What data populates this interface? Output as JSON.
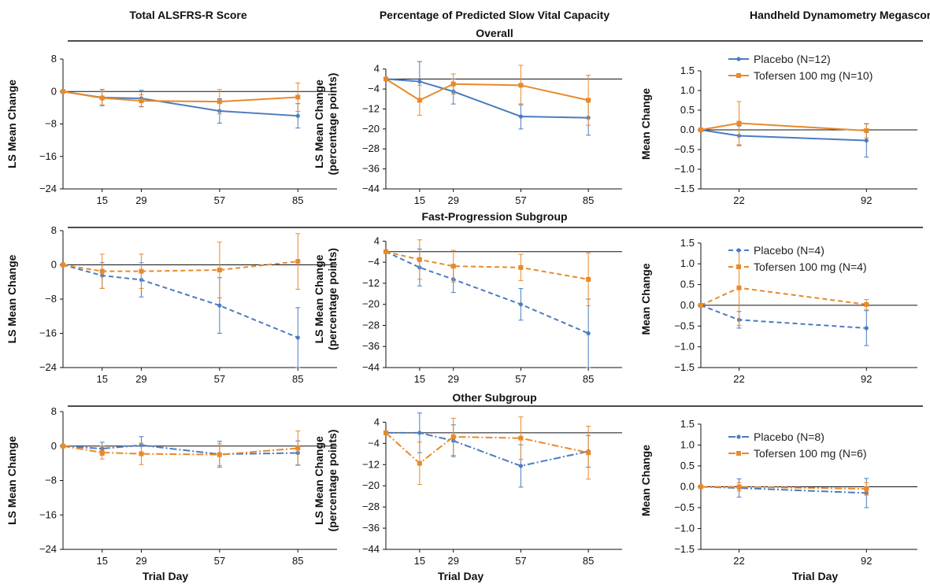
{
  "column_titles": [
    "Total ALSFRS-R Score",
    "Percentage of Predicted Slow Vital Capacity",
    "Handheld Dynamometry Megascore"
  ],
  "row_titles": [
    "Overall",
    "Fast-Progression Subgroup",
    "Other Subgroup"
  ],
  "x_axis_title": "Trial Day",
  "colors": {
    "placebo": "#4a7cc0",
    "tofersen": "#e8892b",
    "axis": "#111111"
  },
  "chart_data": [
    {
      "type": "line",
      "row": 0,
      "col": 0,
      "dash": "solid",
      "ylabel": [
        "LS Mean Change"
      ],
      "x": [
        1,
        15,
        29,
        57,
        85
      ],
      "xticks": [
        15,
        29,
        57,
        85
      ],
      "xlim": [
        1,
        99
      ],
      "ylim": [
        -24,
        8
      ],
      "yticks": [
        8,
        0,
        -8,
        -16,
        -24
      ],
      "ytick_labels": [
        "8",
        "0",
        "−8",
        "−16",
        "−24"
      ],
      "series": [
        {
          "key": "placebo",
          "values": [
            0,
            -1.5,
            -1.7,
            -4.8,
            -6.0
          ],
          "err": [
            0,
            2.0,
            2.0,
            3.0,
            3.0
          ]
        },
        {
          "key": "tofersen",
          "values": [
            0,
            -1.6,
            -2.3,
            -2.5,
            -1.4
          ],
          "err": [
            0,
            1.7,
            1.5,
            3.0,
            3.5
          ]
        }
      ]
    },
    {
      "type": "line",
      "row": 0,
      "col": 1,
      "dash": "solid",
      "ylabel": [
        "LS Mean Change",
        "(percentage points)"
      ],
      "x": [
        1,
        15,
        29,
        57,
        85
      ],
      "xticks": [
        15,
        29,
        57,
        85
      ],
      "xlim": [
        1,
        99
      ],
      "ylim": [
        -44,
        8
      ],
      "yticks": [
        4,
        -4,
        -12,
        -20,
        -28,
        -36,
        -44
      ],
      "ytick_labels": [
        "4",
        "−4",
        "−12",
        "−20",
        "−28",
        "−36",
        "−44"
      ],
      "series": [
        {
          "key": "placebo",
          "values": [
            0,
            -1.0,
            -5.0,
            -15.0,
            -15.5
          ],
          "err": [
            0,
            8.0,
            5.0,
            5.0,
            7.0
          ]
        },
        {
          "key": "tofersen",
          "values": [
            0,
            -8.5,
            -2.0,
            -2.5,
            -8.5
          ],
          "err": [
            0,
            6.0,
            4.0,
            8.0,
            10.0
          ]
        }
      ]
    },
    {
      "type": "line",
      "row": 0,
      "col": 2,
      "dash": "solid",
      "ylabel": [
        "Mean Change"
      ],
      "x": [
        1,
        22,
        92
      ],
      "xticks": [
        22,
        92
      ],
      "xlim": [
        1,
        120
      ],
      "ylim": [
        -1.5,
        1.8
      ],
      "yticks": [
        1.5,
        1.0,
        0.5,
        0.0,
        -0.5,
        -1.0,
        -1.5
      ],
      "ytick_labels": [
        "1.5",
        "1.0",
        "0.5",
        "0.0",
        "−0.5",
        "−1.0",
        "−1.5"
      ],
      "series": [
        {
          "key": "placebo",
          "label": "Placebo (N=12)",
          "values": [
            0,
            -0.15,
            -0.27
          ],
          "err": [
            0,
            0.25,
            0.42
          ]
        },
        {
          "key": "tofersen",
          "label": "Tofersen 100 mg (N=10)",
          "values": [
            0,
            0.17,
            -0.02
          ],
          "err": [
            0,
            0.55,
            0.18
          ]
        }
      ]
    },
    {
      "type": "line",
      "row": 1,
      "col": 0,
      "dash": "dashed",
      "ylabel": [
        "LS Mean Change"
      ],
      "x": [
        1,
        15,
        29,
        57,
        85
      ],
      "xticks": [
        15,
        29,
        57,
        85
      ],
      "xlim": [
        1,
        99
      ],
      "ylim": [
        -24,
        8
      ],
      "yticks": [
        8,
        0,
        -8,
        -16,
        -24
      ],
      "ytick_labels": [
        "8",
        "0",
        "−8",
        "−16",
        "−24"
      ],
      "series": [
        {
          "key": "placebo",
          "values": [
            0,
            -2.5,
            -3.5,
            -9.5,
            -17.0
          ],
          "err": [
            0,
            3.0,
            4.0,
            6.5,
            7.0
          ]
        },
        {
          "key": "tofersen",
          "values": [
            0,
            -1.5,
            -1.5,
            -1.2,
            0.8
          ],
          "err": [
            0,
            4.0,
            4.0,
            6.5,
            6.5
          ]
        }
      ]
    },
    {
      "type": "line",
      "row": 1,
      "col": 1,
      "dash": "dashed",
      "ylabel": [
        "LS Mean Change",
        "(percentage points)"
      ],
      "x": [
        1,
        15,
        29,
        57,
        85
      ],
      "xticks": [
        15,
        29,
        57,
        85
      ],
      "xlim": [
        1,
        99
      ],
      "ylim": [
        -44,
        8
      ],
      "yticks": [
        4,
        -4,
        -12,
        -20,
        -28,
        -36,
        -44
      ],
      "ytick_labels": [
        "4",
        "−4",
        "−12",
        "−20",
        "−28",
        "−36",
        "−44"
      ],
      "series": [
        {
          "key": "placebo",
          "values": [
            0,
            -6.0,
            -10.5,
            -20.0,
            -31.0
          ],
          "err": [
            0,
            7.0,
            5.0,
            6.0,
            13.0
          ]
        },
        {
          "key": "tofersen",
          "values": [
            0,
            -3.0,
            -5.5,
            -6.0,
            -10.5
          ],
          "err": [
            0,
            7.5,
            6.0,
            5.0,
            10.0
          ]
        }
      ]
    },
    {
      "type": "line",
      "row": 1,
      "col": 2,
      "dash": "dashed",
      "ylabel": [
        "Mean Change"
      ],
      "x": [
        1,
        22,
        92
      ],
      "xticks": [
        22,
        92
      ],
      "xlim": [
        1,
        120
      ],
      "ylim": [
        -1.5,
        1.8
      ],
      "yticks": [
        1.5,
        1.0,
        0.5,
        0.0,
        -0.5,
        -1.0,
        -1.5
      ],
      "ytick_labels": [
        "1.5",
        "1.0",
        "0.5",
        "0.0",
        "−0.5",
        "−1.0",
        "−1.5"
      ],
      "series": [
        {
          "key": "placebo",
          "label": "Placebo (N=4)",
          "values": [
            0,
            -0.35,
            -0.55
          ],
          "err": [
            0,
            0.2,
            0.42
          ]
        },
        {
          "key": "tofersen",
          "label": "Tofersen 100 mg (N=4)",
          "values": [
            0,
            0.42,
            0.02
          ],
          "err": [
            0,
            0.9,
            0.12
          ]
        }
      ]
    },
    {
      "type": "line",
      "row": 2,
      "col": 0,
      "dash": "dashdot",
      "ylabel": [
        "LS Mean Change"
      ],
      "x": [
        1,
        15,
        29,
        57,
        85
      ],
      "xticks": [
        15,
        29,
        57,
        85
      ],
      "xlim": [
        1,
        99
      ],
      "ylim": [
        -24,
        8
      ],
      "yticks": [
        8,
        0,
        -8,
        -16,
        -24
      ],
      "ytick_labels": [
        "8",
        "0",
        "−8",
        "−16",
        "−24"
      ],
      "series": [
        {
          "key": "placebo",
          "values": [
            0,
            -0.6,
            0.2,
            -1.9,
            -1.6
          ],
          "err": [
            0,
            1.5,
            2.0,
            3.0,
            2.8
          ]
        },
        {
          "key": "tofersen",
          "values": [
            0,
            -1.5,
            -1.8,
            -2.0,
            -0.5
          ],
          "err": [
            0,
            1.5,
            2.5,
            2.5,
            4.0
          ]
        }
      ]
    },
    {
      "type": "line",
      "row": 2,
      "col": 1,
      "dash": "dashdot",
      "ylabel": [
        "LS Mean Change",
        "(percentage points)"
      ],
      "x": [
        1,
        15,
        29,
        57,
        85
      ],
      "xticks": [
        15,
        29,
        57,
        85
      ],
      "xlim": [
        1,
        99
      ],
      "ylim": [
        -44,
        8
      ],
      "yticks": [
        4,
        -4,
        -12,
        -20,
        -28,
        -36,
        -44
      ],
      "ytick_labels": [
        "4",
        "−4",
        "−12",
        "−20",
        "−28",
        "−36",
        "−44"
      ],
      "series": [
        {
          "key": "placebo",
          "values": [
            0,
            0.0,
            -3.0,
            -12.5,
            -7.0
          ],
          "err": [
            0,
            7.5,
            6.0,
            8.0,
            6.0
          ]
        },
        {
          "key": "tofersen",
          "values": [
            0,
            -11.5,
            -1.5,
            -2.0,
            -7.5
          ],
          "err": [
            0,
            8.0,
            7.0,
            8.0,
            10.0
          ]
        }
      ]
    },
    {
      "type": "line",
      "row": 2,
      "col": 2,
      "dash": "dashdot",
      "ylabel": [
        "Mean Change"
      ],
      "x": [
        1,
        22,
        92
      ],
      "xticks": [
        22,
        92
      ],
      "xlim": [
        1,
        120
      ],
      "ylim": [
        -1.5,
        1.8
      ],
      "yticks": [
        1.5,
        1.0,
        0.5,
        0.0,
        -0.5,
        -1.0,
        -1.5
      ],
      "ytick_labels": [
        "1.5",
        "1.0",
        "0.5",
        "0.0",
        "−0.5",
        "−1.0",
        "−1.5"
      ],
      "series": [
        {
          "key": "placebo",
          "label": "Placebo (N=8)",
          "values": [
            0,
            -0.03,
            -0.15
          ],
          "err": [
            0,
            0.22,
            0.35
          ]
        },
        {
          "key": "tofersen",
          "label": "Tofersen 100 mg (N=6)",
          "values": [
            0,
            0.0,
            -0.05
          ],
          "err": [
            0,
            0.1,
            0.15
          ]
        }
      ]
    }
  ]
}
